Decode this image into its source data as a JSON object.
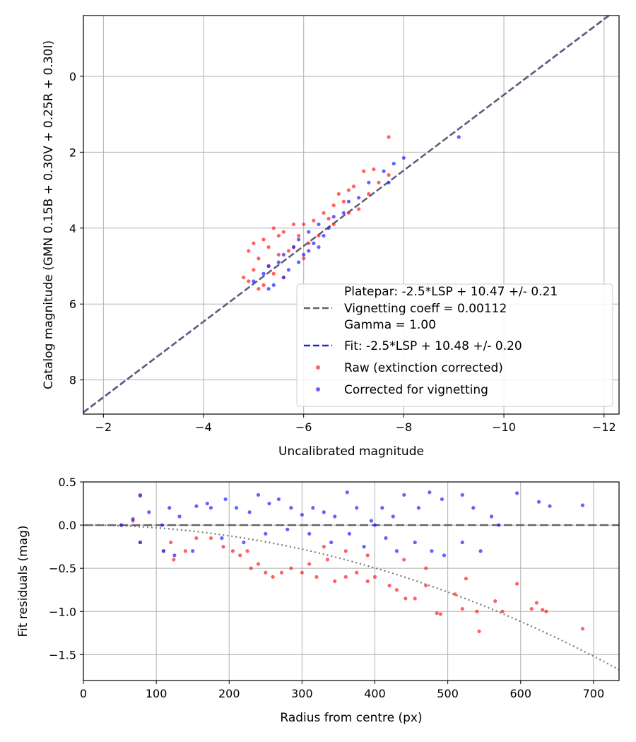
{
  "chart_data": [
    {
      "type": "scatter",
      "title": "",
      "xlabel": "Uncalibrated magnitude",
      "ylabel": "Catalog magnitude (GMN 0.15B + 0.30V + 0.25R + 0.30I)",
      "xlim": [
        -1.6,
        -12.3
      ],
      "ylim": [
        8.9,
        -1.6
      ],
      "x_ticks": [
        -2,
        -4,
        -6,
        -8,
        -10,
        -12
      ],
      "x_tick_labels": [
        "−2",
        "−4",
        "−6",
        "−8",
        "−10",
        "−12"
      ],
      "y_ticks": [
        0,
        2,
        4,
        6,
        8
      ],
      "y_tick_labels": [
        "0",
        "2",
        "4",
        "6",
        "8"
      ],
      "grid": true,
      "legend_position": "lower-right",
      "legend": [
        {
          "label": "Platepar: -2.5*LSP + 10.47 +/- 0.21",
          "style": "none"
        },
        {
          "label": "Vignetting coeff = 0.00112",
          "style": "dashed",
          "color": "#666666"
        },
        {
          "label": "Gamma = 1.00",
          "style": "none"
        },
        {
          "label": "Fit: -2.5*LSP + 10.48 +/- 0.20",
          "style": "dashed",
          "color": "#2222dd"
        },
        {
          "label": "Raw (extinction corrected)",
          "style": "marker",
          "color": "#ff2020"
        },
        {
          "label": "Corrected for vignetting",
          "style": "marker",
          "color": "#2020ff"
        }
      ],
      "series": [
        {
          "kind": "line",
          "color": "#2222dd",
          "dash": true,
          "points": [
            [
              -1.6,
              8.85
            ],
            [
              -12.1,
              -1.6
            ]
          ]
        },
        {
          "kind": "line",
          "color": "#666666",
          "dash": true,
          "points": [
            [
              -1.6,
              8.86
            ],
            [
              -12.1,
              -1.61
            ]
          ]
        },
        {
          "kind": "scatter",
          "color": "#ff2020",
          "points": [
            [
              -7.7,
              1.6
            ],
            [
              -7.7,
              2.6
            ],
            [
              -7.4,
              2.45
            ],
            [
              -7.2,
              2.5
            ],
            [
              -7.5,
              2.8
            ],
            [
              -7.0,
              2.9
            ],
            [
              -6.9,
              3.0
            ],
            [
              -6.7,
              3.1
            ],
            [
              -6.6,
              3.4
            ],
            [
              -6.8,
              3.3
            ],
            [
              -6.4,
              3.6
            ],
            [
              -6.5,
              3.75
            ],
            [
              -6.2,
              3.8
            ],
            [
              -6.0,
              3.9
            ],
            [
              -5.8,
              3.9
            ],
            [
              -5.6,
              4.1
            ],
            [
              -5.4,
              4.0
            ],
            [
              -5.2,
              4.3
            ],
            [
              -5.0,
              4.4
            ],
            [
              -4.9,
              4.6
            ],
            [
              -5.1,
              4.8
            ],
            [
              -5.3,
              5.0
            ],
            [
              -5.0,
              5.1
            ],
            [
              -4.8,
              5.3
            ],
            [
              -5.2,
              5.5
            ],
            [
              -5.5,
              4.7
            ],
            [
              -5.7,
              4.6
            ],
            [
              -6.1,
              4.4
            ],
            [
              -6.3,
              4.2
            ],
            [
              -6.6,
              3.9
            ],
            [
              -7.3,
              3.1
            ],
            [
              -7.1,
              3.5
            ],
            [
              -6.9,
              3.6
            ],
            [
              -5.9,
              4.2
            ],
            [
              -5.4,
              5.2
            ],
            [
              -5.1,
              5.6
            ],
            [
              -4.9,
              5.4
            ],
            [
              -5.6,
              5.3
            ],
            [
              -6.0,
              4.8
            ],
            [
              -5.8,
              4.5
            ],
            [
              -5.3,
              4.5
            ],
            [
              -5.5,
              4.2
            ]
          ]
        },
        {
          "kind": "scatter",
          "color": "#2020ff",
          "points": [
            [
              -9.1,
              1.6
            ],
            [
              -8.0,
              2.15
            ],
            [
              -7.8,
              2.3
            ],
            [
              -7.6,
              2.5
            ],
            [
              -7.7,
              2.8
            ],
            [
              -7.3,
              2.8
            ],
            [
              -7.1,
              3.2
            ],
            [
              -6.9,
              3.3
            ],
            [
              -6.8,
              3.6
            ],
            [
              -6.6,
              3.7
            ],
            [
              -6.3,
              3.9
            ],
            [
              -6.1,
              4.1
            ],
            [
              -5.9,
              4.3
            ],
            [
              -5.8,
              4.5
            ],
            [
              -5.6,
              4.7
            ],
            [
              -5.5,
              4.9
            ],
            [
              -5.3,
              5.0
            ],
            [
              -5.2,
              5.2
            ],
            [
              -5.4,
              5.5
            ],
            [
              -5.0,
              5.4
            ],
            [
              -5.7,
              5.1
            ],
            [
              -6.0,
              4.7
            ],
            [
              -6.2,
              4.4
            ],
            [
              -6.4,
              4.2
            ],
            [
              -6.5,
              4.0
            ],
            [
              -5.9,
              4.9
            ],
            [
              -5.6,
              5.3
            ],
            [
              -5.3,
              5.6
            ],
            [
              -6.1,
              4.6
            ],
            [
              -6.3,
              4.5
            ]
          ]
        }
      ]
    },
    {
      "type": "scatter",
      "title": "",
      "xlabel": "Radius from centre (px)",
      "ylabel": "Fit residuals (mag)",
      "xlim": [
        0,
        735
      ],
      "ylim": [
        -1.8,
        0.5
      ],
      "x_ticks": [
        0,
        100,
        200,
        300,
        400,
        500,
        600,
        700
      ],
      "x_tick_labels": [
        "0",
        "100",
        "200",
        "300",
        "400",
        "500",
        "600",
        "700"
      ],
      "y_ticks": [
        0.5,
        0.0,
        -0.5,
        -1.0,
        -1.5
      ],
      "y_tick_labels": [
        "0.5",
        "0.0",
        "−0.5",
        "−1.0",
        "−1.5"
      ],
      "grid": true,
      "series": [
        {
          "kind": "line",
          "color": "#555555",
          "dash": "long",
          "points": [
            [
              0,
              0
            ],
            [
              735,
              0
            ]
          ]
        },
        {
          "kind": "curve",
          "color": "#777777",
          "dash": "dot",
          "function": "-0.0000031*r^2",
          "range": [
            0,
            735
          ]
        },
        {
          "kind": "scatter",
          "color": "#ff2020",
          "points": [
            [
              52,
              0.0
            ],
            [
              68,
              0.05
            ],
            [
              78,
              0.35
            ],
            [
              78,
              -0.2
            ],
            [
              110,
              -0.3
            ],
            [
              120,
              -0.2
            ],
            [
              124,
              -0.4
            ],
            [
              140,
              -0.3
            ],
            [
              155,
              -0.15
            ],
            [
              175,
              -0.15
            ],
            [
              192,
              -0.25
            ],
            [
              205,
              -0.3
            ],
            [
              215,
              -0.35
            ],
            [
              225,
              -0.3
            ],
            [
              230,
              -0.5
            ],
            [
              240,
              -0.45
            ],
            [
              250,
              -0.55
            ],
            [
              260,
              -0.6
            ],
            [
              272,
              -0.55
            ],
            [
              285,
              -0.5
            ],
            [
              300,
              -0.55
            ],
            [
              310,
              -0.45
            ],
            [
              320,
              -0.6
            ],
            [
              335,
              -0.4
            ],
            [
              345,
              -0.65
            ],
            [
              360,
              -0.6
            ],
            [
              375,
              -0.55
            ],
            [
              390,
              -0.65
            ],
            [
              400,
              -0.6
            ],
            [
              420,
              -0.7
            ],
            [
              430,
              -0.75
            ],
            [
              442,
              -0.85
            ],
            [
              455,
              -0.85
            ],
            [
              470,
              -0.7
            ],
            [
              485,
              -1.02
            ],
            [
              490,
              -1.03
            ],
            [
              510,
              -0.8
            ],
            [
              520,
              -0.97
            ],
            [
              525,
              -0.62
            ],
            [
              540,
              -1.0
            ],
            [
              543,
              -1.23
            ],
            [
              565,
              -0.88
            ],
            [
              575,
              -1.0
            ],
            [
              595,
              -0.68
            ],
            [
              615,
              -0.97
            ],
            [
              622,
              -0.9
            ],
            [
              630,
              -0.98
            ],
            [
              635,
              -1.0
            ],
            [
              685,
              -1.2
            ],
            [
              330,
              -0.25
            ],
            [
              360,
              -0.3
            ],
            [
              390,
              -0.35
            ],
            [
              440,
              -0.4
            ],
            [
              470,
              -0.5
            ]
          ]
        },
        {
          "kind": "scatter",
          "color": "#2020ff",
          "points": [
            [
              52,
              0.0
            ],
            [
              68,
              0.07
            ],
            [
              78,
              0.34
            ],
            [
              90,
              0.15
            ],
            [
              108,
              0.0
            ],
            [
              118,
              0.2
            ],
            [
              132,
              0.1
            ],
            [
              155,
              0.22
            ],
            [
              170,
              0.25
            ],
            [
              175,
              0.2
            ],
            [
              195,
              0.3
            ],
            [
              210,
              0.2
            ],
            [
              228,
              0.15
            ],
            [
              240,
              0.35
            ],
            [
              255,
              0.25
            ],
            [
              268,
              0.3
            ],
            [
              285,
              0.2
            ],
            [
              300,
              0.12
            ],
            [
              315,
              0.2
            ],
            [
              330,
              0.15
            ],
            [
              345,
              0.1
            ],
            [
              362,
              0.38
            ],
            [
              375,
              0.2
            ],
            [
              395,
              0.05
            ],
            [
              410,
              0.2
            ],
            [
              425,
              0.1
            ],
            [
              440,
              0.35
            ],
            [
              460,
              0.2
            ],
            [
              475,
              0.38
            ],
            [
              492,
              0.3
            ],
            [
              520,
              0.35
            ],
            [
              535,
              0.2
            ],
            [
              560,
              0.1
            ],
            [
              595,
              0.37
            ],
            [
              625,
              0.27
            ],
            [
              640,
              0.22
            ],
            [
              685,
              0.23
            ],
            [
              78,
              -0.2
            ],
            [
              110,
              -0.3
            ],
            [
              125,
              -0.35
            ],
            [
              150,
              -0.3
            ],
            [
              190,
              -0.15
            ],
            [
              220,
              -0.2
            ],
            [
              250,
              -0.1
            ],
            [
              280,
              -0.05
            ],
            [
              310,
              -0.1
            ],
            [
              340,
              -0.2
            ],
            [
              365,
              -0.1
            ],
            [
              385,
              -0.25
            ],
            [
              400,
              0.0
            ],
            [
              415,
              -0.15
            ],
            [
              430,
              -0.3
            ],
            [
              455,
              -0.2
            ],
            [
              478,
              -0.3
            ],
            [
              495,
              -0.35
            ],
            [
              520,
              -0.2
            ],
            [
              545,
              -0.3
            ],
            [
              570,
              0.0
            ]
          ]
        }
      ]
    }
  ]
}
